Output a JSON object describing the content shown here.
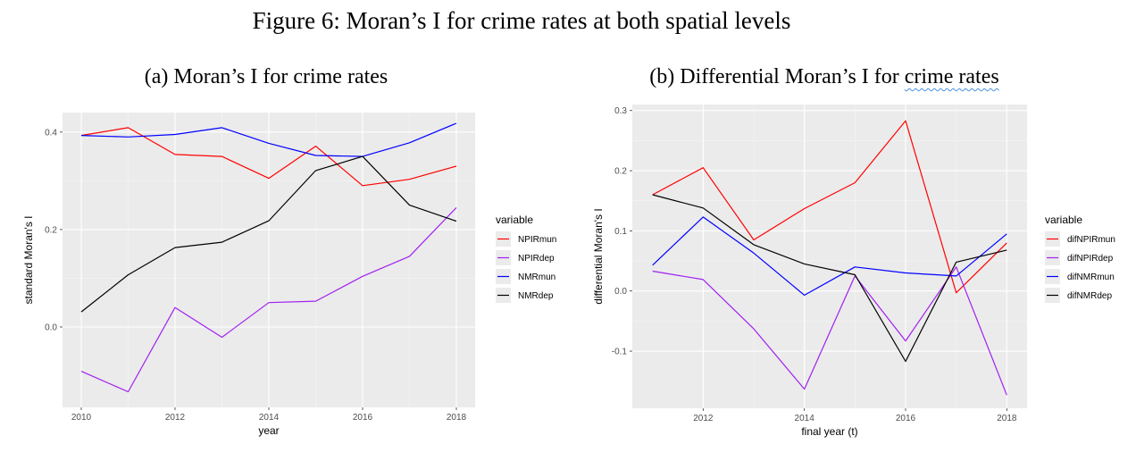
{
  "figure_title": "Figure 6: Moran’s I for crime rates at both spatial levels",
  "panel_a": {
    "subtitle": "(a) Moran’s I for crime rates"
  },
  "panel_b": {
    "subtitle_main": "(b) Differential Moran’s I for ",
    "subtitle_underlined": "crime rates"
  },
  "chart_data": [
    {
      "type": "line",
      "title": "(a) Moran’s I for crime rates",
      "xlabel": "year",
      "ylabel": "standard Moran's I",
      "xlim": [
        2009.6,
        2018.4
      ],
      "ylim": [
        -0.165,
        0.44
      ],
      "x_ticks": [
        2010,
        2012,
        2014,
        2016,
        2018
      ],
      "y_ticks": [
        0.0,
        0.2,
        0.4
      ],
      "y_tick_labels": [
        "0.0",
        "0.2",
        "0.4"
      ],
      "x": [
        2010,
        2011,
        2012,
        2013,
        2014,
        2015,
        2016,
        2017,
        2018
      ],
      "grid": true,
      "legend_title": "variable",
      "legend_position": "right",
      "series": [
        {
          "name": "NPIRmun",
          "color": "#ff0000",
          "values": [
            0.393,
            0.409,
            0.354,
            0.35,
            0.305,
            0.371,
            0.29,
            0.303,
            0.33
          ]
        },
        {
          "name": "NPIRdep",
          "color": "#a020f0",
          "values": [
            -0.091,
            -0.133,
            0.04,
            -0.021,
            0.05,
            0.053,
            0.104,
            0.145,
            0.245
          ]
        },
        {
          "name": "NMRmun",
          "color": "#0000ff",
          "values": [
            0.393,
            0.39,
            0.395,
            0.409,
            0.377,
            0.352,
            0.35,
            0.378,
            0.418
          ]
        },
        {
          "name": "NMRdep",
          "color": "#000000",
          "values": [
            0.031,
            0.107,
            0.163,
            0.174,
            0.218,
            0.321,
            0.35,
            0.25,
            0.217
          ]
        }
      ]
    },
    {
      "type": "line",
      "title": "(b) Differential Moran’s I for crime rates",
      "xlabel": "final year (t)",
      "ylabel": "differential  Moran's I",
      "xlim": [
        2010.6,
        2018.4
      ],
      "ylim": [
        -0.195,
        0.31
      ],
      "x_ticks": [
        2012,
        2014,
        2016,
        2018
      ],
      "y_ticks": [
        -0.1,
        0.0,
        0.1,
        0.2,
        0.3
      ],
      "y_tick_labels": [
        "-0.1",
        "0.0",
        "0.1",
        "0.2",
        "0.3"
      ],
      "x": [
        2011,
        2012,
        2013,
        2014,
        2015,
        2016,
        2017,
        2018
      ],
      "grid": true,
      "legend_title": "variable",
      "legend_position": "right",
      "series": [
        {
          "name": "difNPIRmun",
          "color": "#ff0000",
          "values": [
            0.16,
            0.205,
            0.085,
            0.137,
            0.18,
            0.283,
            -0.003,
            0.08
          ]
        },
        {
          "name": "difNPIRdep",
          "color": "#a020f0",
          "values": [
            0.033,
            0.019,
            -0.063,
            -0.163,
            0.025,
            -0.083,
            0.04,
            -0.173
          ]
        },
        {
          "name": "difNMRmun",
          "color": "#0000ff",
          "values": [
            0.043,
            0.123,
            0.063,
            -0.007,
            0.04,
            0.03,
            0.025,
            0.095
          ]
        },
        {
          "name": "difNMRdep",
          "color": "#000000",
          "values": [
            0.16,
            0.138,
            0.077,
            0.045,
            0.027,
            -0.117,
            0.048,
            0.068
          ]
        }
      ]
    }
  ]
}
